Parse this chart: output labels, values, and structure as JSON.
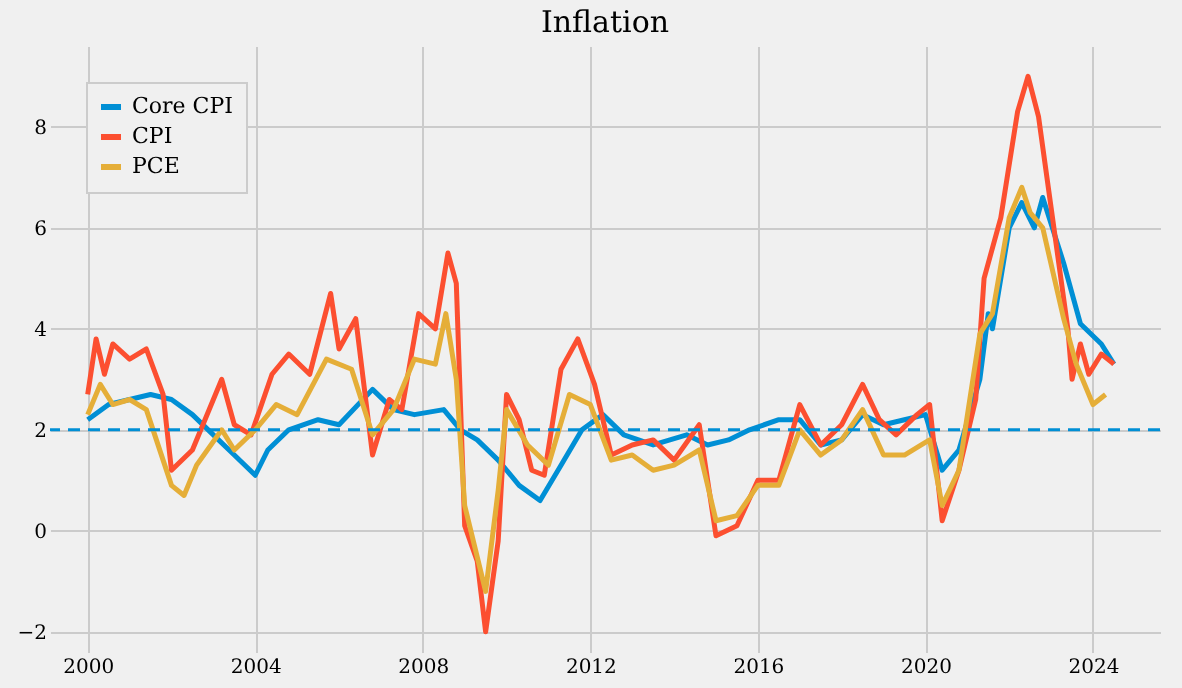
{
  "chart_data": {
    "type": "line",
    "title": "Inflation",
    "xlim": [
      1999.1,
      2025.6
    ],
    "xticks": [
      2000,
      2004,
      2008,
      2012,
      2016,
      2020,
      2024
    ],
    "ylim": [
      -2.4,
      9.6
    ],
    "yticks": [
      -2,
      0,
      2,
      4,
      6,
      8
    ],
    "grid": true,
    "legend": "top left",
    "line_style": "solid",
    "marker": "none",
    "ref_lines": [
      {
        "axis": "y",
        "value": 2,
        "color": "#008fd5",
        "line_style": "dashed"
      }
    ],
    "series": [
      {
        "name": "Core CPI",
        "color": "#008fd5",
        "x": [
          2000,
          2000.5,
          2001,
          2001.5,
          2002,
          2002.5,
          2003,
          2003.5,
          2004,
          2004.3,
          2004.8,
          2005.5,
          2006,
          2006.8,
          2007.3,
          2007.8,
          2008.5,
          2008.9,
          2009.3,
          2009.8,
          2010.3,
          2010.8,
          2011.3,
          2011.8,
          2012.3,
          2012.8,
          2013.5,
          2014.3,
          2014.8,
          2015.3,
          2015.8,
          2016.5,
          2017,
          2017.5,
          2018,
          2018.5,
          2019,
          2019.5,
          2020,
          2020.4,
          2020.8,
          2021.3,
          2021.5,
          2021.6,
          2022,
          2022.3,
          2022.6,
          2022.8,
          2023.3,
          2023.7,
          2024.2,
          2024.5
        ],
        "values": [
          2.2,
          2.5,
          2.6,
          2.7,
          2.6,
          2.3,
          1.9,
          1.5,
          1.1,
          1.6,
          2.0,
          2.2,
          2.1,
          2.8,
          2.4,
          2.3,
          2.4,
          2.0,
          1.8,
          1.4,
          0.9,
          0.6,
          1.3,
          2.0,
          2.3,
          1.9,
          1.7,
          1.9,
          1.7,
          1.8,
          2.0,
          2.2,
          2.2,
          1.7,
          1.8,
          2.3,
          2.1,
          2.2,
          2.3,
          1.2,
          1.6,
          3.0,
          4.3,
          4.0,
          6.0,
          6.5,
          6.0,
          6.6,
          5.3,
          4.1,
          3.7,
          3.3
        ]
      },
      {
        "name": "CPI",
        "color": "#fc4f30",
        "x": [
          2000,
          2000.2,
          2000.4,
          2000.6,
          2001,
          2001.4,
          2001.8,
          2002,
          2002.5,
          2002.8,
          2003.2,
          2003.5,
          2003.9,
          2004.4,
          2004.8,
          2005.3,
          2005.8,
          2006,
          2006.4,
          2006.8,
          2007.2,
          2007.5,
          2007.9,
          2008.3,
          2008.6,
          2008.8,
          2009,
          2009.3,
          2009.5,
          2009.8,
          2010,
          2010.3,
          2010.6,
          2010.9,
          2011.3,
          2011.7,
          2012.1,
          2012.5,
          2013,
          2013.5,
          2014,
          2014.6,
          2015,
          2015.5,
          2016,
          2016.5,
          2017,
          2017.5,
          2018,
          2018.5,
          2018.9,
          2019.3,
          2019.8,
          2020.1,
          2020.4,
          2020.8,
          2021.2,
          2021.4,
          2021.8,
          2022.2,
          2022.45,
          2022.7,
          2023,
          2023.4,
          2023.5,
          2023.7,
          2023.9,
          2024.2,
          2024.5
        ],
        "values": [
          2.7,
          3.8,
          3.1,
          3.7,
          3.4,
          3.6,
          2.7,
          1.2,
          1.6,
          2.2,
          3.0,
          2.1,
          1.9,
          3.1,
          3.5,
          3.1,
          4.7,
          3.6,
          4.2,
          1.5,
          2.6,
          2.4,
          4.3,
          4.0,
          5.5,
          4.9,
          0.1,
          -0.6,
          -2.0,
          -0.2,
          2.7,
          2.2,
          1.2,
          1.1,
          3.2,
          3.8,
          2.9,
          1.5,
          1.7,
          1.8,
          1.4,
          2.1,
          -0.1,
          0.1,
          1.0,
          1.0,
          2.5,
          1.7,
          2.1,
          2.9,
          2.2,
          1.9,
          2.3,
          2.5,
          0.2,
          1.2,
          2.6,
          5.0,
          6.2,
          8.3,
          9.0,
          8.2,
          6.4,
          4.0,
          3.0,
          3.7,
          3.1,
          3.5,
          3.3
        ]
      },
      {
        "name": "PCE",
        "color": "#e5ae38",
        "x": [
          2000,
          2000.3,
          2000.6,
          2001,
          2001.4,
          2001.8,
          2002,
          2002.3,
          2002.6,
          2003.2,
          2003.5,
          2004,
          2004.5,
          2005,
          2005.7,
          2006.3,
          2006.8,
          2007.3,
          2007.8,
          2008.3,
          2008.55,
          2008.8,
          2009,
          2009.5,
          2009.8,
          2010,
          2010.5,
          2011,
          2011.5,
          2012,
          2012.5,
          2013,
          2013.5,
          2014,
          2014.6,
          2015,
          2015.5,
          2016,
          2016.5,
          2017,
          2017.5,
          2018,
          2018.5,
          2019,
          2019.5,
          2019.9,
          2020.1,
          2020.4,
          2020.8,
          2021.3,
          2021.6,
          2022,
          2022.3,
          2022.5,
          2022.8,
          2023.3,
          2023.6,
          2024,
          2024.3
        ],
        "values": [
          2.3,
          2.9,
          2.5,
          2.6,
          2.4,
          1.4,
          0.9,
          0.7,
          1.3,
          2.0,
          1.6,
          2.0,
          2.5,
          2.3,
          3.4,
          3.2,
          1.9,
          2.4,
          3.4,
          3.3,
          4.3,
          3.0,
          0.5,
          -1.2,
          0.8,
          2.4,
          1.7,
          1.3,
          2.7,
          2.5,
          1.4,
          1.5,
          1.2,
          1.3,
          1.6,
          0.2,
          0.3,
          0.9,
          0.9,
          2.0,
          1.5,
          1.8,
          2.4,
          1.5,
          1.5,
          1.7,
          1.8,
          0.5,
          1.2,
          3.9,
          4.3,
          6.2,
          6.8,
          6.3,
          6.0,
          4.2,
          3.3,
          2.5,
          2.7
        ]
      }
    ]
  }
}
